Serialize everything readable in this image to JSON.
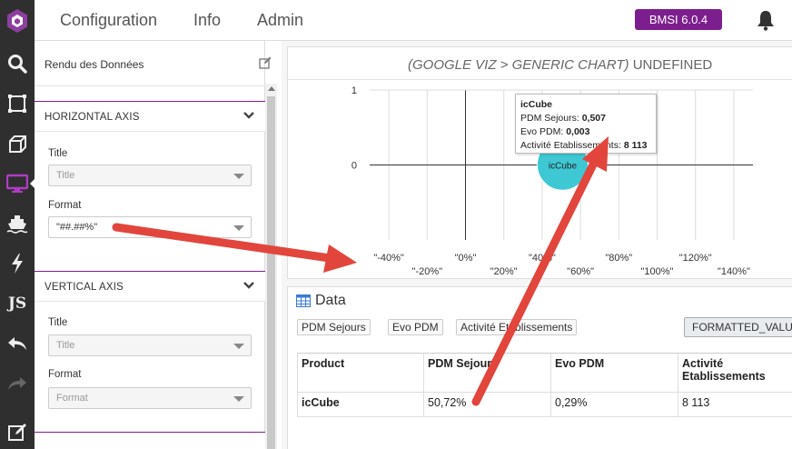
{
  "header": {
    "nav": [
      "Configuration",
      "Info",
      "Admin"
    ],
    "version": "BMSI 6.0.4"
  },
  "rail": {
    "icons": [
      "search-icon",
      "select-area-icon",
      "cube-icon",
      "monitor-icon",
      "ship-icon",
      "lightning-icon",
      "js-icon",
      "undo-icon",
      "redo-icon",
      "edit-icon"
    ],
    "js_label": "JS",
    "active": "monitor-icon"
  },
  "panel": {
    "title": "Rendu des Données",
    "horizontal_axis": {
      "label": "HORIZONTAL AXIS",
      "title_label": "Title",
      "title_placeholder": "Title",
      "format_label": "Format",
      "format_value": "\"##.##%\""
    },
    "vertical_axis": {
      "label": "VERTICAL AXIS",
      "title_label": "Title",
      "title_placeholder": "Title",
      "format_label": "Format",
      "format_placeholder": "Format"
    }
  },
  "chart": {
    "header_italic": "(GOOGLE VIZ > GENERIC CHART)",
    "header_rest": "UNDEFINED",
    "tooltip": {
      "name": "icCube",
      "row1_label": "PDM Sejours:",
      "row1_value": "0,507",
      "row2_label": "Evo PDM:",
      "row2_value": "0,003",
      "row3_label": "Activité Etablissements:",
      "row3_value": "8 113"
    }
  },
  "chart_data": {
    "type": "scatter",
    "x_ticks_upper": [
      "\"-40%\"",
      "\"0%\"",
      "\"40%\"",
      "\"80%\"",
      "\"120%\""
    ],
    "x_ticks_lower": [
      "\"-20%\"",
      "\"20%\"",
      "\"60%\"",
      "\"100%\"",
      "\"140%\""
    ],
    "x_tick_values": [
      -0.4,
      -0.2,
      0,
      0.2,
      0.4,
      0.6,
      0.8,
      1.0,
      1.2,
      1.4
    ],
    "y_ticks": [
      "1",
      "0"
    ],
    "xlim": [
      -0.5,
      1.5
    ],
    "ylim": [
      -1,
      1
    ],
    "points": [
      {
        "label": "icCube",
        "x": 0.507,
        "y": 0.003,
        "size": 8113
      }
    ],
    "bubble_color": "#3ec8d3",
    "grid": true
  },
  "data": {
    "title": "Data",
    "chips": [
      "PDM Sejours",
      "Evo PDM",
      "Activité Etablissements"
    ],
    "format_chip": "FORMATTED_VALUE",
    "columns": [
      "Product",
      "PDM Sejours",
      "Evo PDM",
      "Activité Etablissements"
    ],
    "rows": [
      [
        "icCube",
        "50,72%",
        "0,29%",
        "8 113"
      ]
    ]
  },
  "colors": {
    "accent": "#7d1e8e",
    "rail_bg": "#2f2f2f",
    "arrow": "#e2453c",
    "bubble": "#3ec8d3"
  }
}
